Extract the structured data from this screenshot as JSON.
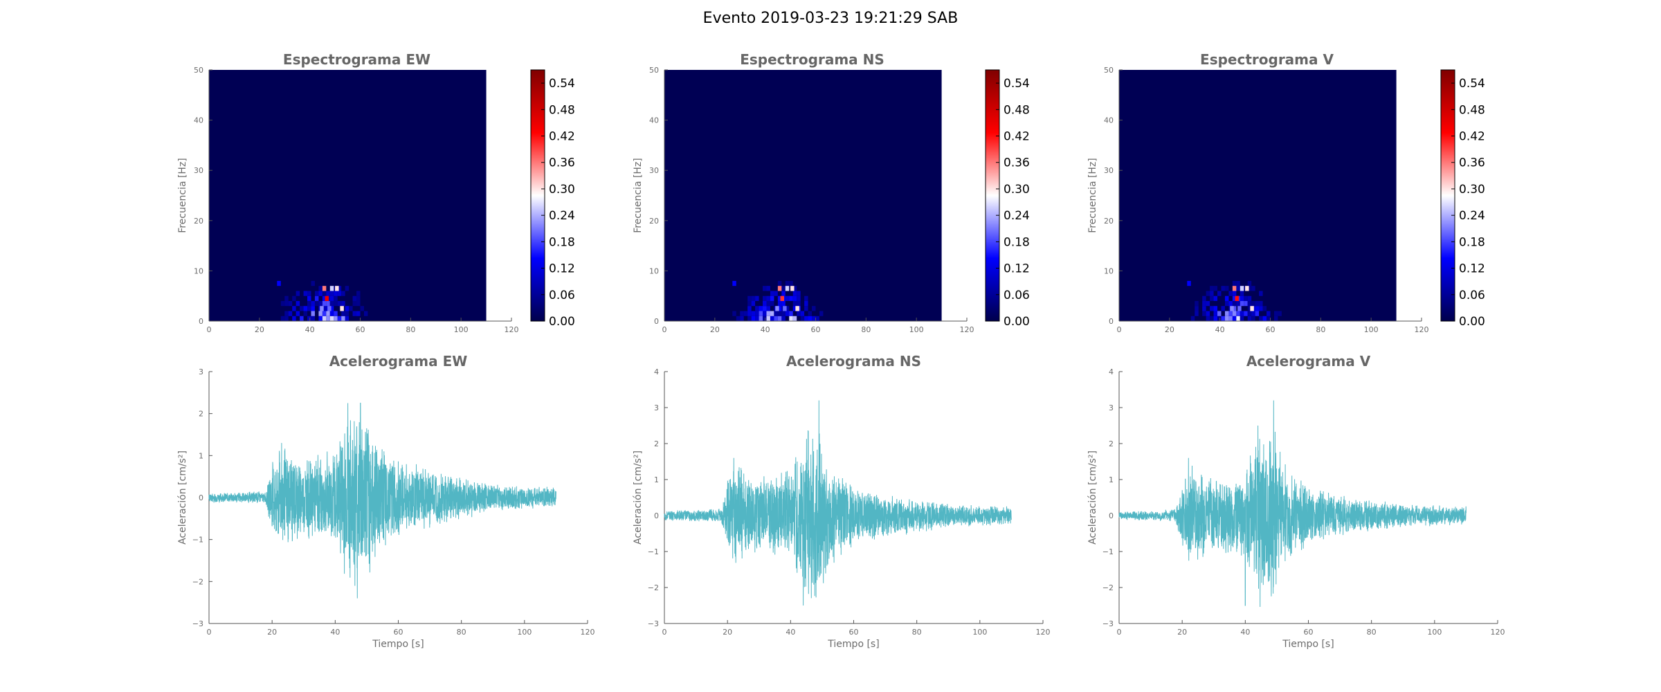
{
  "figure": {
    "title": "Evento 2019-03-23 19:21:29 SAB"
  },
  "colors": {
    "signal": "#52b6c4",
    "spec_bg": "#000054",
    "axis": "#555555",
    "title": "#666666"
  },
  "chart_data": [
    {
      "type": "heatmap",
      "title": "Espectrograma EW",
      "xlabel": "",
      "ylabel": "Frecuencia [Hz]",
      "xlim": [
        0,
        120
      ],
      "ylim": [
        0,
        50
      ],
      "xticks": [
        "0",
        "20",
        "40",
        "60",
        "80",
        "100",
        "120"
      ],
      "yticks": [
        "0",
        "10",
        "20",
        "30",
        "40",
        "50"
      ],
      "data_extent_x": [
        0,
        110
      ],
      "colorbar": {
        "ticks": [
          "0.00",
          "0.06",
          "0.12",
          "0.18",
          "0.24",
          "0.30",
          "0.36",
          "0.42",
          "0.48",
          "0.54"
        ],
        "range": [
          0,
          0.57
        ]
      },
      "hotspots": [
        {
          "t": 52,
          "f": 2,
          "v": 0.3
        },
        {
          "t": 45,
          "f": 6,
          "v": 0.36
        },
        {
          "t": 50,
          "f": 6,
          "v": 0.3
        },
        {
          "t": 46,
          "f": 4,
          "v": 0.45
        },
        {
          "t": 44,
          "f": 2,
          "v": 0.22
        },
        {
          "t": 47,
          "f": 2,
          "v": 0.2
        },
        {
          "t": 27,
          "f": 7,
          "v": 0.14
        },
        {
          "t": 48,
          "f": 6,
          "v": 0.26
        }
      ]
    },
    {
      "type": "heatmap",
      "title": "Espectrograma NS",
      "xlabel": "",
      "ylabel": "Frecuencia [Hz]",
      "xlim": [
        0,
        120
      ],
      "ylim": [
        0,
        50
      ],
      "xticks": [
        "0",
        "20",
        "40",
        "60",
        "80",
        "100",
        "120"
      ],
      "yticks": [
        "0",
        "10",
        "20",
        "30",
        "40",
        "50"
      ],
      "data_extent_x": [
        0,
        110
      ],
      "colorbar": {
        "ticks": [
          "0.00",
          "0.06",
          "0.12",
          "0.18",
          "0.24",
          "0.30",
          "0.36",
          "0.42",
          "0.48",
          "0.54"
        ],
        "range": [
          0,
          0.57
        ]
      },
      "hotspots": [
        {
          "t": 52,
          "f": 2,
          "v": 0.3
        },
        {
          "t": 45,
          "f": 6,
          "v": 0.36
        },
        {
          "t": 50,
          "f": 6,
          "v": 0.3
        },
        {
          "t": 46,
          "f": 4,
          "v": 0.4
        },
        {
          "t": 44,
          "f": 2,
          "v": 0.22
        },
        {
          "t": 47,
          "f": 2,
          "v": 0.2
        },
        {
          "t": 27,
          "f": 7,
          "v": 0.14
        },
        {
          "t": 48,
          "f": 6,
          "v": 0.26
        }
      ]
    },
    {
      "type": "heatmap",
      "title": "Espectrograma V",
      "xlabel": "",
      "ylabel": "Frecuencia [Hz]",
      "xlim": [
        0,
        120
      ],
      "ylim": [
        0,
        50
      ],
      "xticks": [
        "0",
        "20",
        "40",
        "60",
        "80",
        "100",
        "120"
      ],
      "yticks": [
        "0",
        "10",
        "20",
        "30",
        "40",
        "50"
      ],
      "data_extent_x": [
        0,
        110
      ],
      "colorbar": {
        "ticks": [
          "0.00",
          "0.06",
          "0.12",
          "0.18",
          "0.24",
          "0.30",
          "0.36",
          "0.42",
          "0.48",
          "0.54"
        ],
        "range": [
          0,
          0.57
        ]
      },
      "hotspots": [
        {
          "t": 52,
          "f": 2,
          "v": 0.3
        },
        {
          "t": 45,
          "f": 6,
          "v": 0.36
        },
        {
          "t": 50,
          "f": 6,
          "v": 0.3
        },
        {
          "t": 46,
          "f": 4,
          "v": 0.42
        },
        {
          "t": 44,
          "f": 2,
          "v": 0.22
        },
        {
          "t": 47,
          "f": 2,
          "v": 0.2
        },
        {
          "t": 27,
          "f": 7,
          "v": 0.14
        },
        {
          "t": 48,
          "f": 6,
          "v": 0.26
        }
      ]
    },
    {
      "type": "line",
      "title": "Acelerograma EW",
      "xlabel": "Tiempo [s]",
      "ylabel": "Aceleración [cm/s²]",
      "xlim": [
        0,
        120
      ],
      "ylim": [
        -3,
        3
      ],
      "xticks": [
        "0",
        "20",
        "40",
        "60",
        "80",
        "100",
        "120"
      ],
      "yticks": [
        "−3",
        "−2",
        "−1",
        "0",
        "1",
        "2",
        "3"
      ],
      "duration": 110,
      "envelope": [
        [
          0,
          0.12
        ],
        [
          18,
          0.15
        ],
        [
          20,
          0.9
        ],
        [
          23,
          1.3
        ],
        [
          30,
          1.0
        ],
        [
          40,
          1.2
        ],
        [
          43,
          2.0
        ],
        [
          46,
          2.3
        ],
        [
          50,
          2.3
        ],
        [
          53,
          1.4
        ],
        [
          60,
          1.0
        ],
        [
          70,
          0.75
        ],
        [
          80,
          0.55
        ],
        [
          90,
          0.35
        ],
        [
          100,
          0.28
        ],
        [
          110,
          0.25
        ]
      ],
      "peaks": [
        {
          "t": 44,
          "v": 2.25
        },
        {
          "t": 48,
          "v": 2.25
        },
        {
          "t": 47,
          "v": -2.4
        },
        {
          "t": 23,
          "v": 1.3
        }
      ]
    },
    {
      "type": "line",
      "title": "Acelerograma NS",
      "xlabel": "Tiempo [s]",
      "ylabel": "Aceleración [cm/s²]",
      "xlim": [
        0,
        120
      ],
      "ylim": [
        -3,
        4
      ],
      "xticks": [
        "0",
        "20",
        "40",
        "60",
        "80",
        "100",
        "120"
      ],
      "yticks": [
        "−3",
        "−2",
        "−1",
        "0",
        "1",
        "2",
        "3",
        "4"
      ],
      "duration": 110,
      "envelope": [
        [
          0,
          0.15
        ],
        [
          18,
          0.2
        ],
        [
          20,
          1.0
        ],
        [
          22,
          1.5
        ],
        [
          30,
          1.1
        ],
        [
          40,
          1.3
        ],
        [
          44,
          2.5
        ],
        [
          48,
          3.0
        ],
        [
          52,
          1.6
        ],
        [
          60,
          0.9
        ],
        [
          70,
          0.65
        ],
        [
          80,
          0.5
        ],
        [
          90,
          0.35
        ],
        [
          100,
          0.3
        ],
        [
          110,
          0.28
        ]
      ],
      "peaks": [
        {
          "t": 49,
          "v": 3.2
        },
        {
          "t": 44,
          "v": 2.5
        },
        {
          "t": 44,
          "v": -2.5
        },
        {
          "t": 22,
          "v": 1.6
        }
      ]
    },
    {
      "type": "line",
      "title": "Acelerograma V",
      "xlabel": "Tiempo [s]",
      "ylabel": "Aceleración [cm/s²]",
      "xlim": [
        0,
        120
      ],
      "ylim": [
        -3,
        4
      ],
      "xticks": [
        "0",
        "20",
        "40",
        "60",
        "80",
        "100",
        "120"
      ],
      "yticks": [
        "−3",
        "−2",
        "−1",
        "0",
        "1",
        "2",
        "3",
        "4"
      ],
      "duration": 110,
      "envelope": [
        [
          0,
          0.12
        ],
        [
          18,
          0.18
        ],
        [
          20,
          1.0
        ],
        [
          22,
          1.6
        ],
        [
          30,
          1.1
        ],
        [
          40,
          1.3
        ],
        [
          44,
          2.5
        ],
        [
          48,
          3.0
        ],
        [
          52,
          1.6
        ],
        [
          60,
          0.9
        ],
        [
          70,
          0.6
        ],
        [
          80,
          0.45
        ],
        [
          90,
          0.35
        ],
        [
          100,
          0.3
        ],
        [
          110,
          0.28
        ]
      ],
      "peaks": [
        {
          "t": 49,
          "v": 3.2
        },
        {
          "t": 44,
          "v": 2.5
        },
        {
          "t": 40,
          "v": -2.5
        },
        {
          "t": 22,
          "v": 1.6
        }
      ]
    }
  ]
}
